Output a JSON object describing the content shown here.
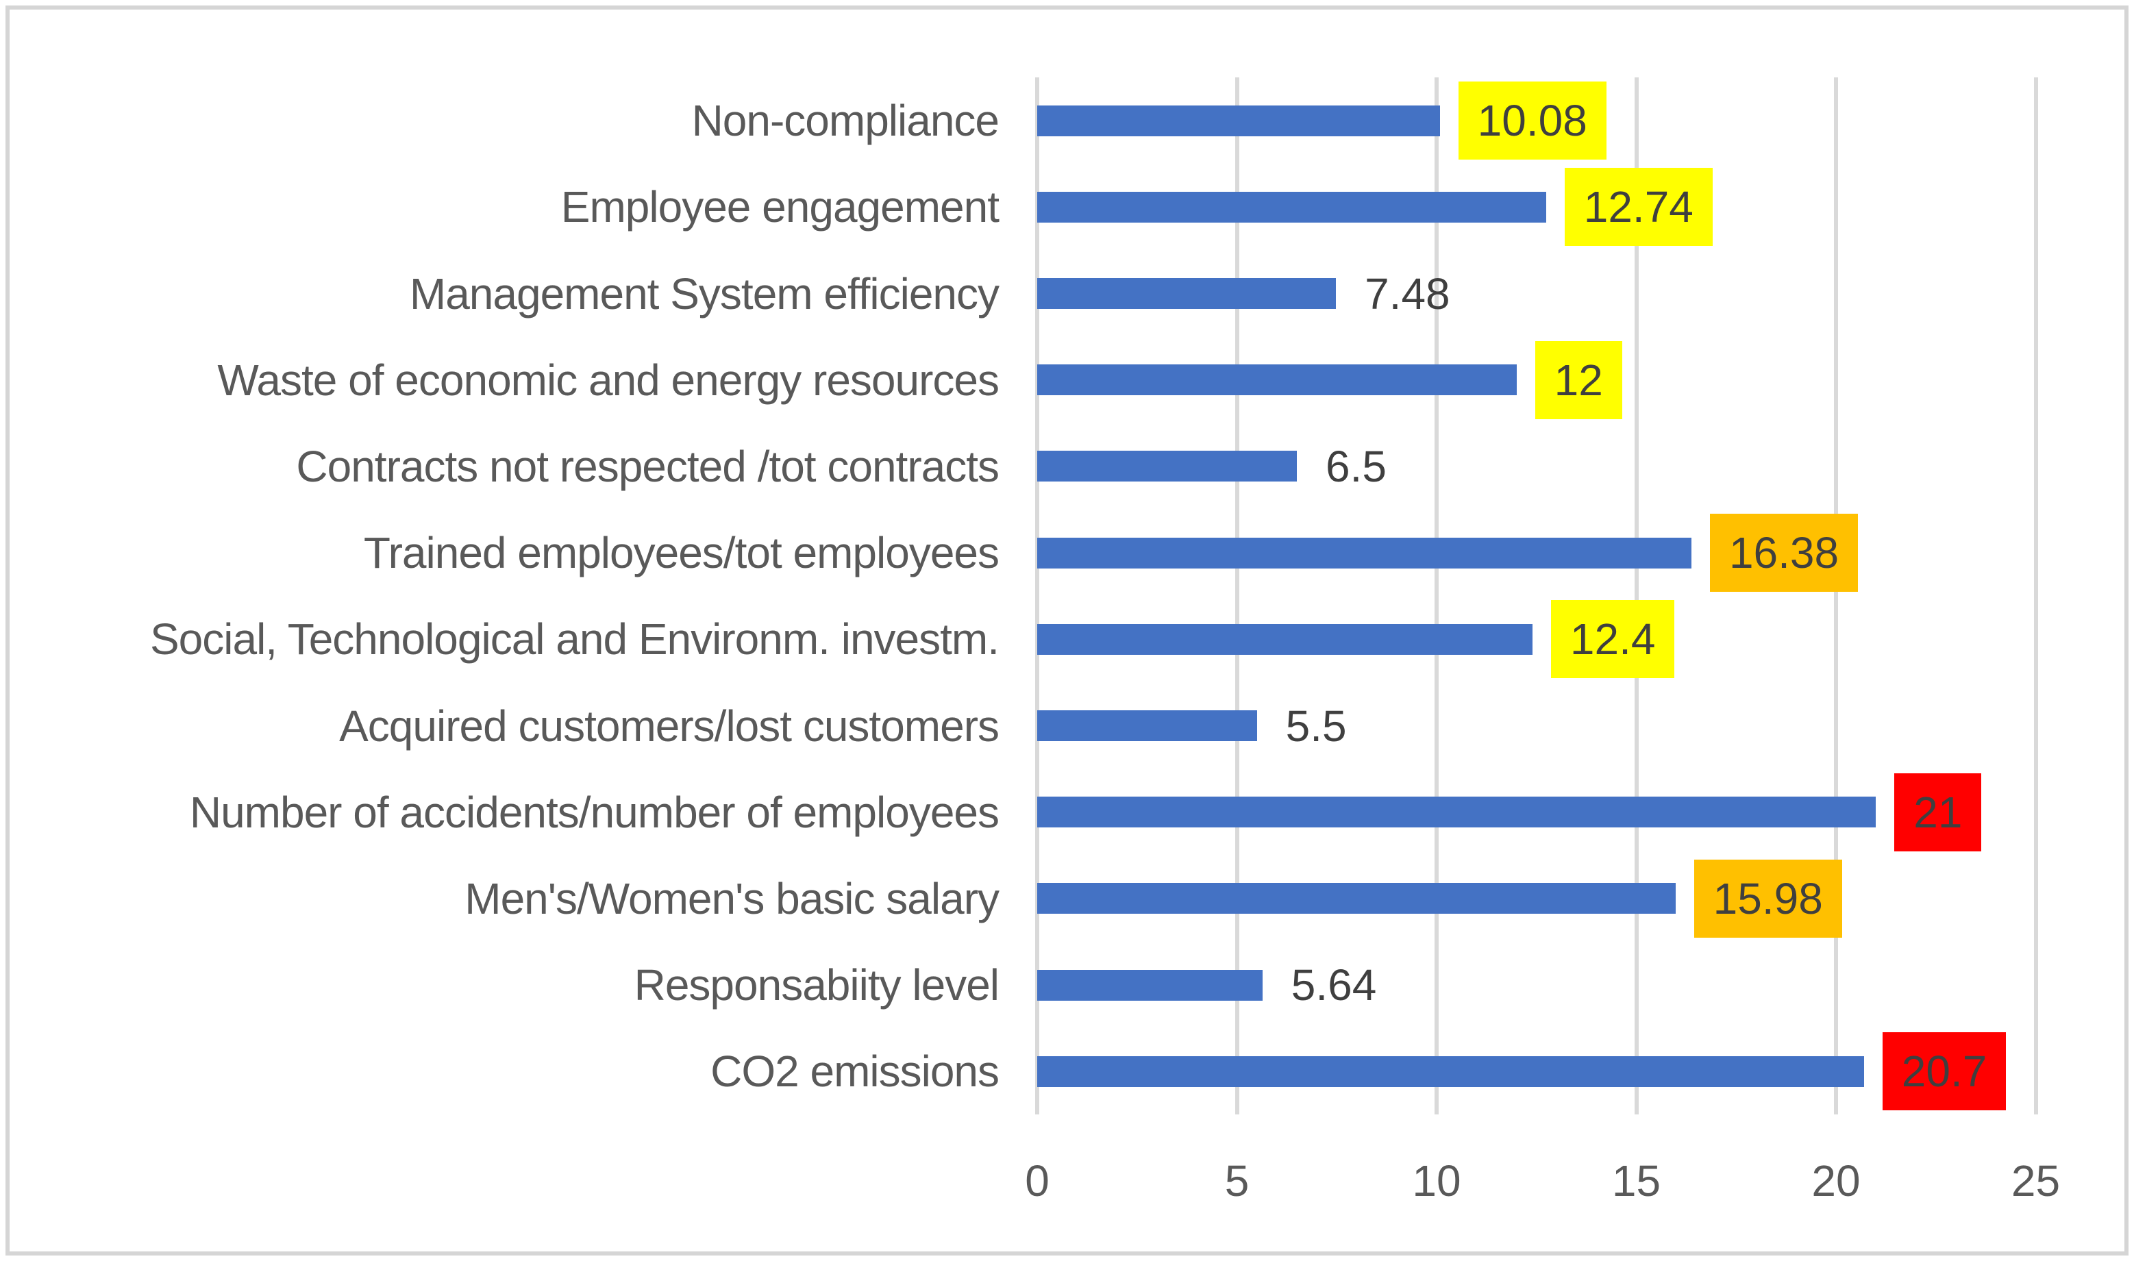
{
  "chart_data": {
    "type": "bar",
    "orientation": "horizontal",
    "title": "",
    "xlabel": "",
    "ylabel": "",
    "grid": "vertical",
    "legend": "none",
    "xlim": [
      0,
      25
    ],
    "x_ticks": [
      "0",
      "5",
      "10",
      "15",
      "20",
      "25"
    ],
    "x_tick_values": [
      0,
      5,
      10,
      15,
      20,
      25
    ],
    "categories": [
      "Non-compliance",
      "Employee engagement",
      "Management System efficiency",
      "Waste of economic and energy resources",
      "Contracts not respected /tot contracts",
      "Trained employees/tot employees",
      "Social, Technological and Environm. investm.",
      "Acquired customers/lost customers",
      "Number of accidents/number of employees",
      "Men's/Women's basic salary",
      "Responsabiity level",
      "CO2 emissions"
    ],
    "values": [
      10.08,
      12.74,
      7.48,
      12,
      6.5,
      16.38,
      12.4,
      5.5,
      21,
      15.98,
      5.64,
      20.7
    ],
    "value_labels": [
      "10.08",
      "12.74",
      "7.48",
      "12",
      "6.5",
      "16.38",
      "12.4",
      "5.5",
      "21",
      "15.98",
      "5.64",
      "20.7"
    ],
    "highlights": [
      "yellow",
      "yellow",
      null,
      "yellow",
      null,
      "orange",
      "yellow",
      null,
      "red",
      "orange",
      null,
      "red"
    ],
    "colors": {
      "bar": "#4472C4",
      "highlight_yellow": "#FFFF00",
      "highlight_orange": "#FFC000",
      "highlight_red": "#FF0000",
      "gridline": "#D9D9D9",
      "category_text": "#595959",
      "value_text": "#3F3F3F",
      "axis_text": "#595959",
      "frame_border": "#D5D5D5",
      "background": "#FFFFFF"
    }
  }
}
